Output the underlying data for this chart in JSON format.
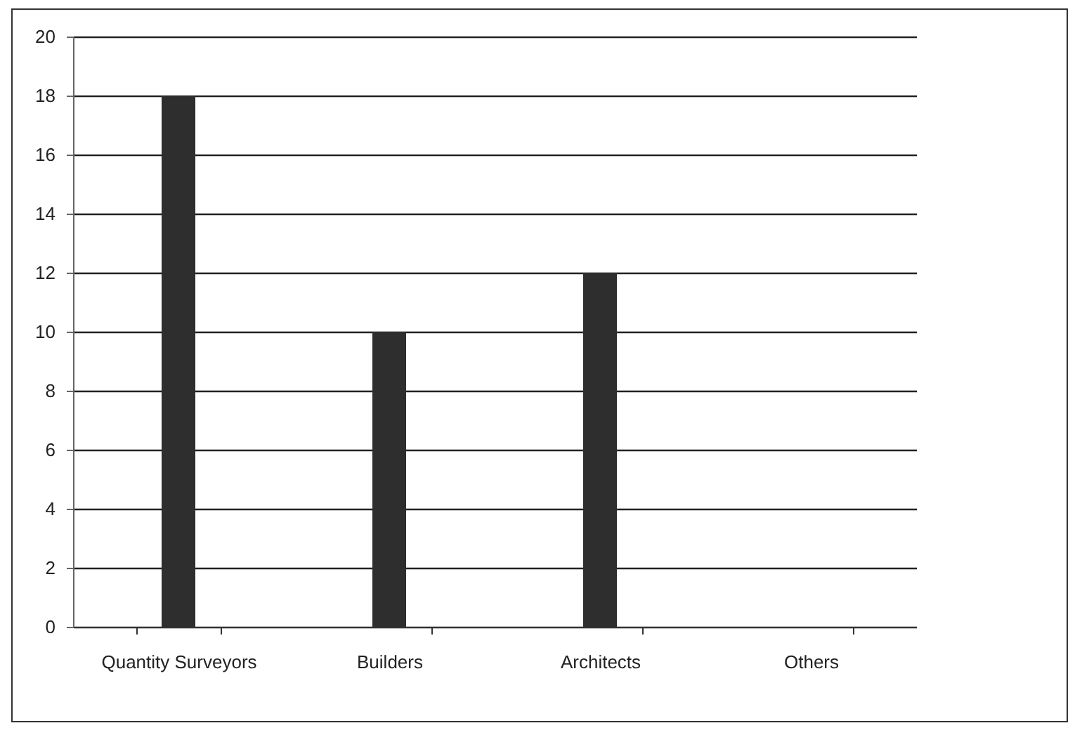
{
  "chart_data": {
    "type": "bar",
    "categories": [
      "Quantity Surveyors",
      "Builders",
      "Architects",
      "Others"
    ],
    "values": [
      18,
      10,
      12,
      0
    ],
    "color": "#2e2e2e",
    "ylim": [
      0,
      20
    ],
    "yticks": [
      0,
      2,
      4,
      6,
      8,
      10,
      12,
      14,
      16,
      18,
      20
    ],
    "grid": "y"
  }
}
